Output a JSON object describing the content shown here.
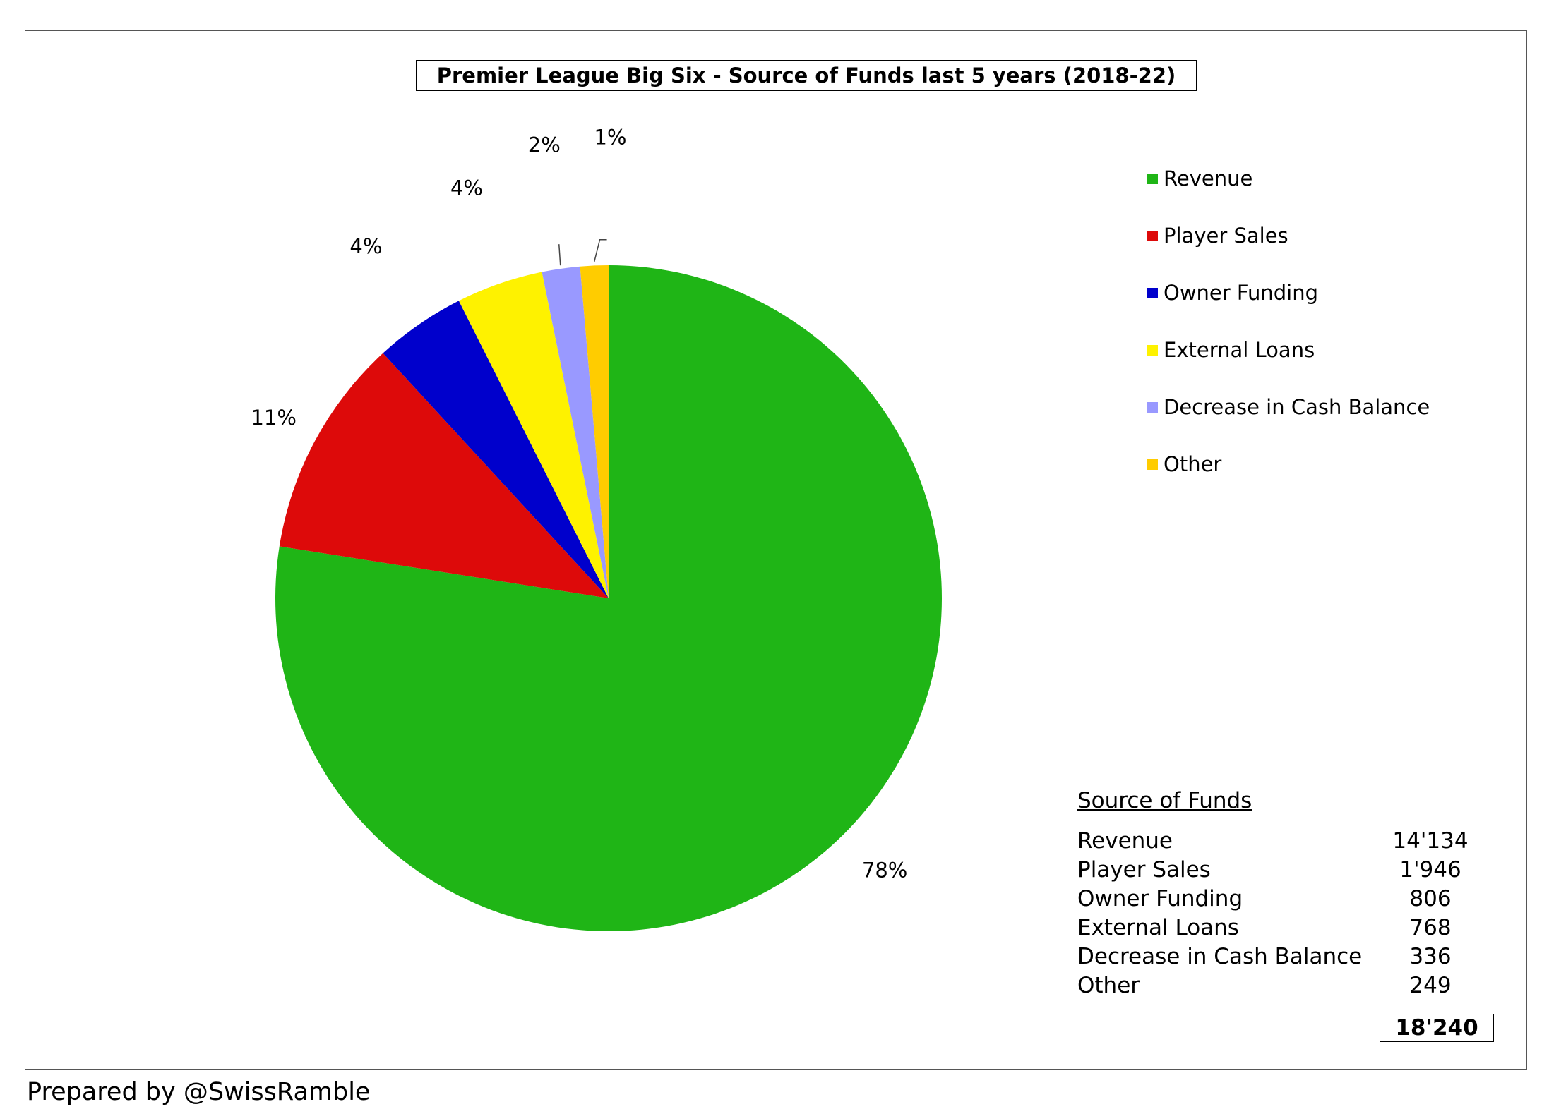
{
  "chart_data": {
    "type": "pie",
    "title": "Premier League Big Six - Source of Funds last 5 years (2018-22)",
    "categories": [
      "Revenue",
      "Player Sales",
      "Owner Funding",
      "External Loans",
      "Decrease in Cash Balance",
      "Other"
    ],
    "values": [
      14134,
      1946,
      806,
      768,
      336,
      249
    ],
    "percent_labels": [
      "78%",
      "11%",
      "4%",
      "4%",
      "2%",
      "1%"
    ],
    "colors": [
      "#1fb516",
      "#dd0a0a",
      "#0000cc",
      "#fef200",
      "#9999ff",
      "#ffcc00"
    ],
    "legend_position": "right",
    "start": "12 o'clock",
    "direction": "clockwise"
  },
  "table": {
    "title": "Source of Funds",
    "rows": [
      {
        "label": "Revenue",
        "value": "14'134"
      },
      {
        "label": "Player Sales",
        "value": "1'946"
      },
      {
        "label": "Owner Funding",
        "value": "806"
      },
      {
        "label": "External Loans",
        "value": "768"
      },
      {
        "label": "Decrease in Cash Balance",
        "value": "336"
      },
      {
        "label": "Other",
        "value": "249"
      }
    ],
    "total": "18'240"
  },
  "credit": "Prepared by @SwissRamble"
}
